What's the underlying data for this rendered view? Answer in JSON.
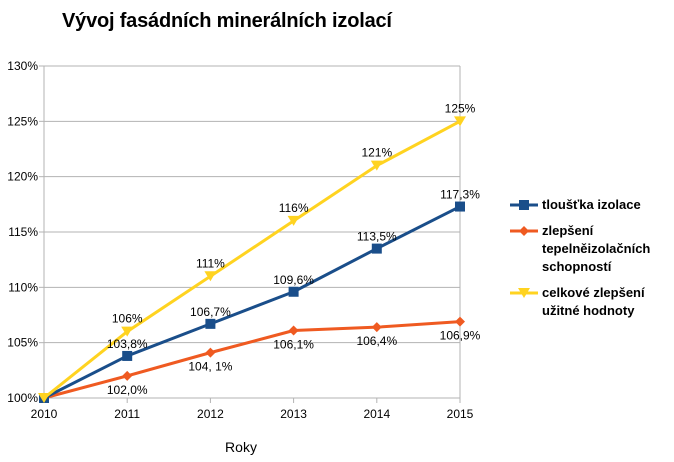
{
  "chart_data": {
    "type": "line",
    "title": "Vývoj fasádních minerálních izolací",
    "xlabel": "Roky",
    "ylabel": "",
    "x": [
      "2010",
      "2011",
      "2012",
      "2013",
      "2014",
      "2015"
    ],
    "yticks": [
      "100%",
      "105%",
      "110%",
      "115%",
      "120%",
      "125%",
      "130%"
    ],
    "ylim": [
      100,
      130
    ],
    "grid": "horizontal",
    "legend_position": "right",
    "series": [
      {
        "name": "tloušťka izolace",
        "color": "#1a4e8a",
        "marker": "square",
        "values": [
          100,
          103.8,
          106.7,
          109.6,
          113.5,
          117.3
        ],
        "labels": [
          "",
          "103,8%",
          "106,7%",
          "109,6%",
          "113,5%",
          "117,3%"
        ]
      },
      {
        "name": "zlepšení tepelněizolačních schopností",
        "color": "#ef5a21",
        "marker": "diamond",
        "values": [
          100,
          102.0,
          104.1,
          106.1,
          106.4,
          106.9
        ],
        "labels": [
          "",
          "102,0%",
          "104, 1%",
          "106,1%",
          "106,4%",
          "106,9%"
        ]
      },
      {
        "name": "celkové zlepšení užitné hodnoty",
        "color": "#ffd320",
        "marker": "triangle",
        "values": [
          100,
          106,
          111,
          116,
          121,
          125
        ],
        "labels": [
          "",
          "106%",
          "111%",
          "116%",
          "121%",
          "125%"
        ]
      }
    ]
  }
}
